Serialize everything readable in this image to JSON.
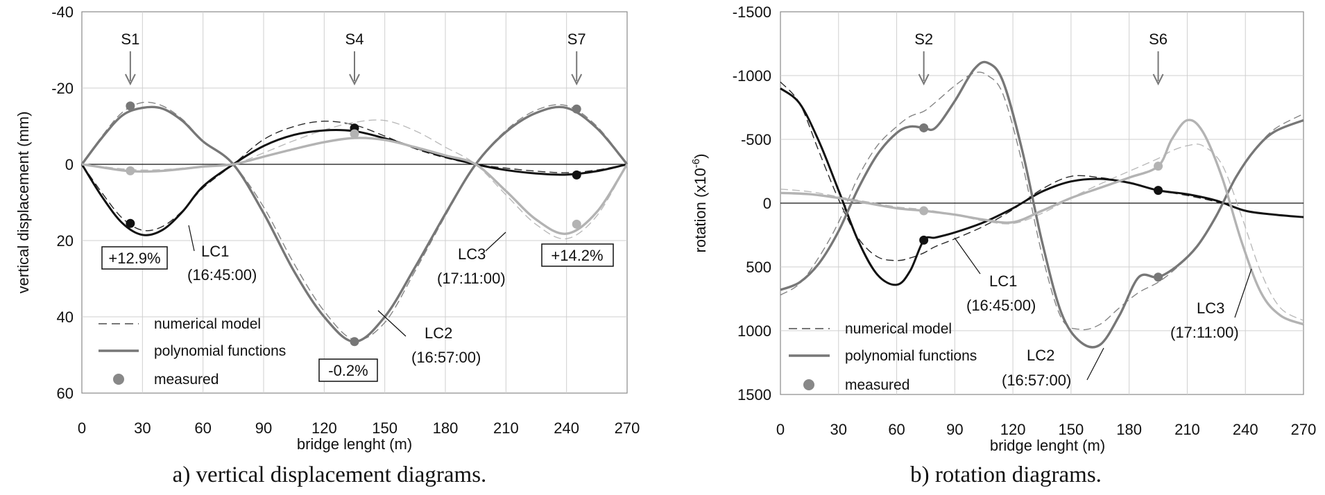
{
  "captions": {
    "a": "a) vertical displacement diagrams.",
    "b": "b) rotation diagrams."
  },
  "legend": {
    "numerical": "numerical model",
    "polynomial": "polynomial functions",
    "measured": "measured"
  },
  "colors": {
    "lc1": "#111111",
    "lc2": "#777777",
    "lc3": "#b3b3b3",
    "arrow": "#777777",
    "grid": "#cfcfcf"
  },
  "chart_data": [
    {
      "type": "line",
      "panel": "a",
      "xlabel": "bridge lenght (m)",
      "ylabel": "vertical displacement (mm)",
      "xlim": [
        0,
        270
      ],
      "ylim": [
        60,
        -40
      ],
      "y_inverted": true,
      "grid": true,
      "xticks": [
        "0",
        "30",
        "60",
        "90",
        "120",
        "150",
        "180",
        "210",
        "240",
        "270"
      ],
      "yticks": [
        "-40",
        "-20",
        "0",
        "20",
        "40",
        "60"
      ],
      "legend_position": "bottom-left",
      "sensors": [
        {
          "label": "S1",
          "x": 24
        },
        {
          "label": "S4",
          "x": 135
        },
        {
          "label": "S7",
          "x": 245
        }
      ],
      "series": [
        {
          "name": "LC1",
          "label": "LC1",
          "time": "(16:45:00)",
          "polynomial": {
            "x": [
              0,
              10,
              20,
              30,
              40,
              50,
              60,
              75,
              90,
              105,
              120,
              135,
              150,
              165,
              180,
              195,
              210,
              225,
              240,
              255,
              270
            ],
            "y": [
              0,
              8.5,
              15.4,
              18.5,
              17.2,
              12.3,
              5.8,
              0,
              -4.8,
              -7.7,
              -8.9,
              -8.7,
              -6.8,
              -4.4,
              -2.0,
              0,
              1.5,
              2.4,
              2.7,
              1.8,
              0
            ]
          },
          "numerical": {
            "x": [
              0,
              10,
              20,
              30,
              40,
              50,
              60,
              75,
              90,
              105,
              120,
              135,
              150,
              165,
              180,
              195,
              210,
              225,
              240,
              255,
              270
            ],
            "y": [
              0,
              7.5,
              14.1,
              17.3,
              16.3,
              12.1,
              6.2,
              0,
              -6.5,
              -9.9,
              -11.3,
              -10.3,
              -7.4,
              -4.1,
              -1.7,
              0,
              1.0,
              1.8,
              2.2,
              1.5,
              0
            ]
          },
          "measured": [
            {
              "x": 24,
              "y": 15.5
            },
            {
              "x": 135,
              "y": -9.5
            },
            {
              "x": 245,
              "y": 2.8
            }
          ]
        },
        {
          "name": "LC2",
          "label": "LC2",
          "time": "(16:57:00)",
          "polynomial": {
            "x": [
              0,
              10,
              20,
              30,
              40,
              50,
              60,
              75,
              90,
              105,
              120,
              135,
              150,
              165,
              180,
              195,
              210,
              225,
              240,
              255,
              270
            ],
            "y": [
              0,
              -7.0,
              -12.8,
              -14.8,
              -14.6,
              -11.3,
              -6.0,
              0,
              12.8,
              28.0,
              40.0,
              46.5,
              40.0,
              27.0,
              13.0,
              0,
              -8.5,
              -13.5,
              -14.8,
              -9.5,
              0
            ]
          },
          "numerical": {
            "x": [
              0,
              10,
              20,
              30,
              40,
              50,
              60,
              75,
              90,
              105,
              120,
              135,
              150,
              165,
              180,
              195,
              210,
              225,
              240,
              255,
              270
            ],
            "y": [
              0,
              -7.4,
              -13.6,
              -16.2,
              -15.3,
              -11.7,
              -6.2,
              0,
              11.2,
              26.0,
              38.5,
              46.0,
              41.5,
              28.0,
              13.5,
              0,
              -8.9,
              -14.2,
              -15.4,
              -10.0,
              0
            ]
          },
          "measured": [
            {
              "x": 24,
              "y": -15.3
            },
            {
              "x": 135,
              "y": 46.5
            },
            {
              "x": 245,
              "y": -14.5
            }
          ]
        },
        {
          "name": "LC3",
          "label": "LC3",
          "time": "(17:11:00)",
          "polynomial": {
            "x": [
              0,
              10,
              20,
              30,
              40,
              50,
              60,
              75,
              90,
              105,
              120,
              135,
              150,
              165,
              180,
              195,
              210,
              225,
              240,
              255,
              270
            ],
            "y": [
              0,
              0.8,
              1.6,
              1.9,
              1.7,
              1.2,
              0.6,
              0,
              -2.0,
              -4.0,
              -5.8,
              -6.9,
              -6.4,
              -4.5,
              -2.3,
              0,
              7.0,
              14.5,
              18.2,
              12.5,
              0
            ]
          },
          "numerical": {
            "x": [
              0,
              10,
              20,
              30,
              40,
              50,
              60,
              75,
              90,
              105,
              120,
              135,
              150,
              165,
              180,
              195,
              210,
              225,
              240,
              255,
              270
            ],
            "y": [
              0,
              0.6,
              1.2,
              1.5,
              1.4,
              1.0,
              0.5,
              0,
              -3.0,
              -6.2,
              -9.0,
              -11.0,
              -11.5,
              -8.8,
              -4.5,
              0,
              8.0,
              15.8,
              19.5,
              13.5,
              0
            ]
          },
          "measured": [
            {
              "x": 24,
              "y": 1.7
            },
            {
              "x": 135,
              "y": -8.0
            },
            {
              "x": 245,
              "y": 15.7
            }
          ]
        }
      ],
      "annotations": [
        {
          "text": "+12.9%",
          "boxed": true
        },
        {
          "text": "-0.2%",
          "boxed": true
        },
        {
          "text": "+14.2%",
          "boxed": true
        }
      ]
    },
    {
      "type": "line",
      "panel": "b",
      "xlabel": "bridge lenght (m)",
      "ylabel": "rotation (x10",
      "ylabel_sup": "-6",
      "ylabel_end": ")",
      "xlim": [
        0,
        270
      ],
      "ylim": [
        1500,
        -1500
      ],
      "y_inverted": true,
      "grid": true,
      "xticks": [
        "0",
        "30",
        "60",
        "90",
        "120",
        "150",
        "180",
        "210",
        "240",
        "270"
      ],
      "yticks": [
        "-1500",
        "-1000",
        "-500",
        "0",
        "500",
        "1000",
        "1500"
      ],
      "legend_position": "bottom-left",
      "sensors": [
        {
          "label": "S2",
          "x": 74
        },
        {
          "label": "S6",
          "x": 195
        }
      ],
      "series": [
        {
          "name": "LC1",
          "label": "LC1",
          "time": "(16:45:00)",
          "polynomial": {
            "x": [
              0,
              10,
              20,
              30,
              40,
              50,
              60,
              67,
              74,
              80,
              90,
              105,
              120,
              135,
              150,
              165,
              180,
              195,
              210,
              225,
              240,
              255,
              270
            ],
            "y": [
              -900,
              -780,
              -480,
              -100,
              290,
              560,
              640,
              530,
              290,
              270,
              230,
              150,
              40,
              -90,
              -170,
              -190,
              -160,
              -100,
              -70,
              -20,
              60,
              90,
              110
            ]
          },
          "numerical": {
            "x": [
              0,
              10,
              20,
              30,
              40,
              50,
              60,
              67,
              74,
              80,
              90,
              105,
              120,
              135,
              150,
              165,
              180,
              195,
              210,
              225,
              240,
              255,
              270
            ],
            "y": [
              -950,
              -780,
              -400,
              -30,
              270,
              420,
              450,
              430,
              390,
              340,
              280,
              180,
              50,
              -110,
              -210,
              -200,
              -160,
              -100,
              -60,
              -10,
              60,
              90,
              110
            ]
          },
          "measured": [
            {
              "x": 74,
              "y": 290
            },
            {
              "x": 195,
              "y": -100
            }
          ]
        },
        {
          "name": "LC2",
          "label": "LC2",
          "time": "(16:57:00)",
          "polynomial": {
            "x": [
              0,
              10,
              20,
              30,
              40,
              50,
              60,
              67,
              74,
              80,
              90,
              100,
              107,
              115,
              125,
              135,
              145,
              155,
              165,
              175,
              185,
              195,
              205,
              215,
              225,
              235,
              245,
              255,
              270
            ],
            "y": [
              680,
              620,
              470,
              220,
              -110,
              -380,
              -550,
              -600,
              -590,
              -590,
              -800,
              -1050,
              -1100,
              -950,
              -400,
              300,
              860,
              1090,
              1110,
              880,
              580,
              580,
              490,
              340,
              100,
              -200,
              -420,
              -560,
              -650
            ]
          },
          "numerical": {
            "x": [
              0,
              10,
              20,
              30,
              40,
              50,
              60,
              67,
              74,
              80,
              90,
              100,
              107,
              115,
              125,
              135,
              145,
              155,
              165,
              175,
              185,
              195,
              205,
              215,
              225,
              235,
              245,
              255,
              270
            ],
            "y": [
              720,
              630,
              420,
              150,
              -200,
              -450,
              -600,
              -680,
              -720,
              -790,
              -920,
              -1020,
              -1000,
              -850,
              -300,
              400,
              900,
              990,
              950,
              820,
              700,
              620,
              500,
              340,
              100,
              -200,
              -420,
              -580,
              -700
            ]
          },
          "measured": [
            {
              "x": 74,
              "y": -590
            },
            {
              "x": 195,
              "y": 580
            }
          ]
        },
        {
          "name": "LC3",
          "label": "LC3",
          "time": "(17:11:00)",
          "polynomial": {
            "x": [
              0,
              15,
              30,
              45,
              60,
              74,
              90,
              105,
              120,
              135,
              150,
              165,
              180,
              195,
              202,
              210,
              218,
              228,
              238,
              248,
              258,
              270
            ],
            "y": [
              -80,
              -70,
              -40,
              0,
              40,
              60,
              90,
              130,
              150,
              60,
              -40,
              -120,
              -200,
              -290,
              -500,
              -650,
              -560,
              -200,
              300,
              700,
              880,
              950
            ]
          },
          "numerical": {
            "x": [
              0,
              15,
              30,
              45,
              60,
              74,
              90,
              105,
              120,
              135,
              150,
              165,
              180,
              195,
              202,
              210,
              218,
              228,
              238,
              248,
              258,
              270
            ],
            "y": [
              -110,
              -90,
              -50,
              -10,
              30,
              50,
              90,
              140,
              160,
              80,
              -40,
              -150,
              -250,
              -350,
              -410,
              -450,
              -450,
              -300,
              100,
              540,
              820,
              920
            ]
          },
          "measured": [
            {
              "x": 74,
              "y": 60
            },
            {
              "x": 195,
              "y": -290
            }
          ]
        }
      ]
    }
  ]
}
